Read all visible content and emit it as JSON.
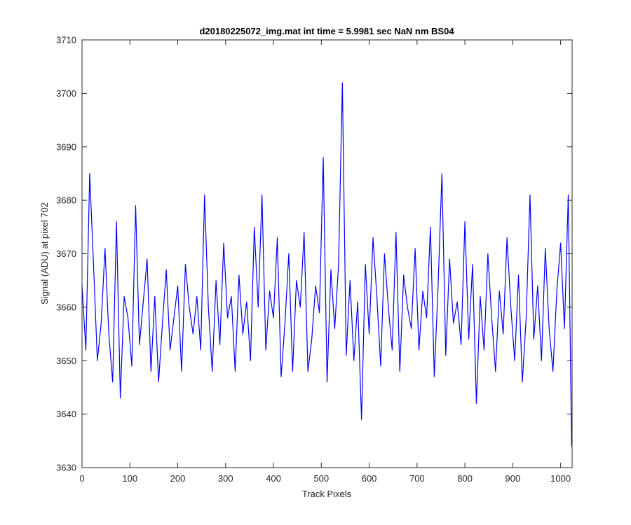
{
  "chart_data": {
    "type": "line",
    "title": "d20180225072_img.mat int time = 5.9981 sec  NaN nm BS04",
    "xlabel": "Track Pixels",
    "ylabel": "Signal (ADU) at pixel 702",
    "xlim": [
      0,
      1024
    ],
    "ylim": [
      3630,
      3710
    ],
    "x_ticks": [
      "0",
      "100",
      "200",
      "300",
      "400",
      "500",
      "600",
      "700",
      "800",
      "900",
      "1000"
    ],
    "y_ticks": [
      "3630",
      "3640",
      "3650",
      "3660",
      "3670",
      "3680",
      "3690",
      "3700",
      "3710"
    ],
    "grid": false,
    "legend": "none",
    "series": [
      {
        "color": "#0000ff",
        "x": [
          0,
          8,
          16,
          24,
          32,
          40,
          48,
          56,
          64,
          72,
          80,
          88,
          96,
          104,
          112,
          120,
          128,
          136,
          144,
          152,
          160,
          168,
          176,
          184,
          192,
          200,
          208,
          216,
          224,
          232,
          240,
          248,
          256,
          264,
          272,
          280,
          288,
          296,
          304,
          312,
          320,
          328,
          336,
          344,
          352,
          360,
          368,
          376,
          384,
          392,
          400,
          408,
          416,
          424,
          432,
          440,
          448,
          456,
          464,
          472,
          480,
          488,
          496,
          504,
          512,
          520,
          528,
          536,
          544,
          552,
          560,
          568,
          576,
          584,
          592,
          600,
          608,
          616,
          624,
          632,
          640,
          648,
          656,
          664,
          672,
          680,
          688,
          696,
          704,
          712,
          720,
          728,
          736,
          744,
          752,
          760,
          768,
          776,
          784,
          792,
          800,
          808,
          816,
          824,
          832,
          840,
          848,
          856,
          864,
          872,
          880,
          888,
          896,
          904,
          912,
          920,
          928,
          936,
          944,
          952,
          960,
          968,
          976,
          984,
          992,
          1000,
          1008,
          1016,
          1023
        ],
        "values": [
          3664,
          3652,
          3685,
          3668,
          3650,
          3657,
          3671,
          3655,
          3646,
          3676,
          3643,
          3662,
          3658,
          3649,
          3679,
          3653,
          3661,
          3669,
          3648,
          3662,
          3646,
          3657,
          3667,
          3652,
          3658,
          3664,
          3648,
          3668,
          3660,
          3655,
          3662,
          3652,
          3681,
          3660,
          3648,
          3665,
          3653,
          3672,
          3658,
          3662,
          3648,
          3666,
          3655,
          3661,
          3650,
          3675,
          3660,
          3681,
          3652,
          3663,
          3658,
          3673,
          3647,
          3657,
          3670,
          3648,
          3665,
          3660,
          3674,
          3648,
          3654,
          3664,
          3659,
          3688,
          3646,
          3667,
          3656,
          3668,
          3702,
          3651,
          3665,
          3650,
          3661,
          3639,
          3668,
          3655,
          3673,
          3662,
          3649,
          3670,
          3660,
          3652,
          3674,
          3648,
          3666,
          3660,
          3656,
          3671,
          3652,
          3663,
          3658,
          3675,
          3647,
          3664,
          3685,
          3651,
          3669,
          3657,
          3661,
          3653,
          3676,
          3654,
          3668,
          3642,
          3662,
          3652,
          3670,
          3658,
          3648,
          3663,
          3655,
          3673,
          3660,
          3650,
          3666,
          3646,
          3658,
          3681,
          3654,
          3664,
          3650,
          3671,
          3656,
          3648,
          3663,
          3672,
          3656,
          3681,
          3634
        ]
      }
    ]
  }
}
